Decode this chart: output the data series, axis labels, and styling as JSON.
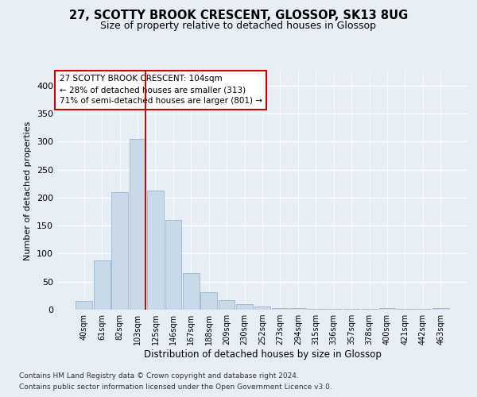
{
  "title1": "27, SCOTTY BROOK CRESCENT, GLOSSOP, SK13 8UG",
  "title2": "Size of property relative to detached houses in Glossop",
  "xlabel": "Distribution of detached houses by size in Glossop",
  "ylabel": "Number of detached properties",
  "categories": [
    "40sqm",
    "61sqm",
    "82sqm",
    "103sqm",
    "125sqm",
    "146sqm",
    "167sqm",
    "188sqm",
    "209sqm",
    "230sqm",
    "252sqm",
    "273sqm",
    "294sqm",
    "315sqm",
    "336sqm",
    "357sqm",
    "378sqm",
    "400sqm",
    "421sqm",
    "442sqm",
    "463sqm"
  ],
  "values": [
    15,
    88,
    210,
    305,
    213,
    160,
    65,
    31,
    17,
    10,
    6,
    3,
    3,
    2,
    1,
    2,
    1,
    3,
    1,
    2,
    3
  ],
  "bar_color": "#c9d9ea",
  "bar_edge_color": "#99b5cc",
  "background_color": "#e8eef5",
  "grid_color": "#ffffff",
  "vline_color": "#cc0000",
  "annotation_text": "27 SCOTTY BROOK CRESCENT: 104sqm\n← 28% of detached houses are smaller (313)\n71% of semi-detached houses are larger (801) →",
  "annotation_box_color": "#ffffff",
  "annotation_box_edge": "#cc0000",
  "footnote1": "Contains HM Land Registry data © Crown copyright and database right 2024.",
  "footnote2": "Contains public sector information licensed under the Open Government Licence v3.0.",
  "ylim": [
    0,
    425
  ],
  "yticks": [
    0,
    50,
    100,
    150,
    200,
    250,
    300,
    350,
    400
  ]
}
